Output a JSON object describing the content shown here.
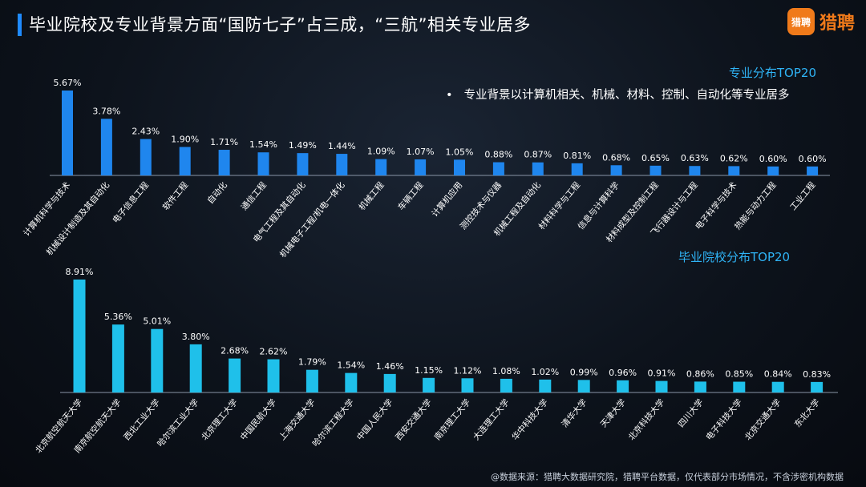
{
  "page": {
    "title": "毕业院校及专业背景方面“国防七子”占三成，“三航”相关专业居多",
    "logo_badge": "猎聘",
    "logo_text": "猎聘",
    "source": "@数据来源：猎聘大数据研究院，猎聘平台数据，仅代表部分市场情况，不含涉密机构数据",
    "note": "专业背景以计算机相关、机械、材料、控制、自动化等专业居多",
    "note_bullet": "•"
  },
  "colors": {
    "accent": "#1f8bff",
    "bar_major": "#1f86ee",
    "bar_school": "#1fc0ea",
    "logo": "#f07a1a",
    "section_title": "#2fb3f5"
  },
  "chart_data": [
    {
      "type": "bar",
      "title": "专业分布TOP20",
      "categories": [
        "计算机科学与技术",
        "机械设计制造及其自动化",
        "电子信息工程",
        "软件工程",
        "自动化",
        "通信工程",
        "电气工程及其自动化",
        "机械电子工程/机电一体化",
        "机械工程",
        "车辆工程",
        "计算机应用",
        "测控技术与仪器",
        "机械工程及自动化",
        "材料科学与工程",
        "信息与计算科学",
        "材料成型及控制工程",
        "飞行器设计与工程",
        "电子科学与技术",
        "热能与动力工程",
        "工业工程"
      ],
      "values": [
        5.67,
        3.78,
        2.43,
        1.9,
        1.71,
        1.54,
        1.49,
        1.44,
        1.09,
        1.07,
        1.05,
        0.88,
        0.87,
        0.81,
        0.68,
        0.65,
        0.63,
        0.62,
        0.6,
        0.6
      ],
      "value_labels": [
        "5.67%",
        "3.78%",
        "2.43%",
        "1.90%",
        "1.71%",
        "1.54%",
        "1.49%",
        "1.44%",
        "1.09%",
        "1.07%",
        "1.05%",
        "0.88%",
        "0.87%",
        "0.81%",
        "0.68%",
        "0.65%",
        "0.63%",
        "0.62%",
        "0.60%",
        "0.60%"
      ],
      "unit": "%",
      "grid": false
    },
    {
      "type": "bar",
      "title": "毕业院校分布TOP20",
      "categories": [
        "北京航空航天大学",
        "南京航空航天大学",
        "西北工业大学",
        "哈尔滨工业大学",
        "北京理工大学",
        "中国民航大学",
        "上海交通大学",
        "哈尔滨工程大学",
        "中国人民大学",
        "西安交通大学",
        "南京理工大学",
        "大连理工大学",
        "华中科技大学",
        "清华大学",
        "天津大学",
        "北京科技大学",
        "四川大学",
        "电子科技大学",
        "北京交通大学",
        "东北大学"
      ],
      "values": [
        8.91,
        5.36,
        5.01,
        3.8,
        2.68,
        2.62,
        1.79,
        1.54,
        1.46,
        1.15,
        1.12,
        1.08,
        1.02,
        0.99,
        0.96,
        0.91,
        0.86,
        0.85,
        0.84,
        0.83
      ],
      "value_labels": [
        "8.91%",
        "5.36%",
        "5.01%",
        "3.80%",
        "2.68%",
        "2.62%",
        "1.79%",
        "1.54%",
        "1.46%",
        "1.15%",
        "1.12%",
        "1.08%",
        "1.02%",
        "0.99%",
        "0.96%",
        "0.91%",
        "0.86%",
        "0.85%",
        "0.84%",
        "0.83%"
      ],
      "unit": "%",
      "grid": false
    }
  ]
}
